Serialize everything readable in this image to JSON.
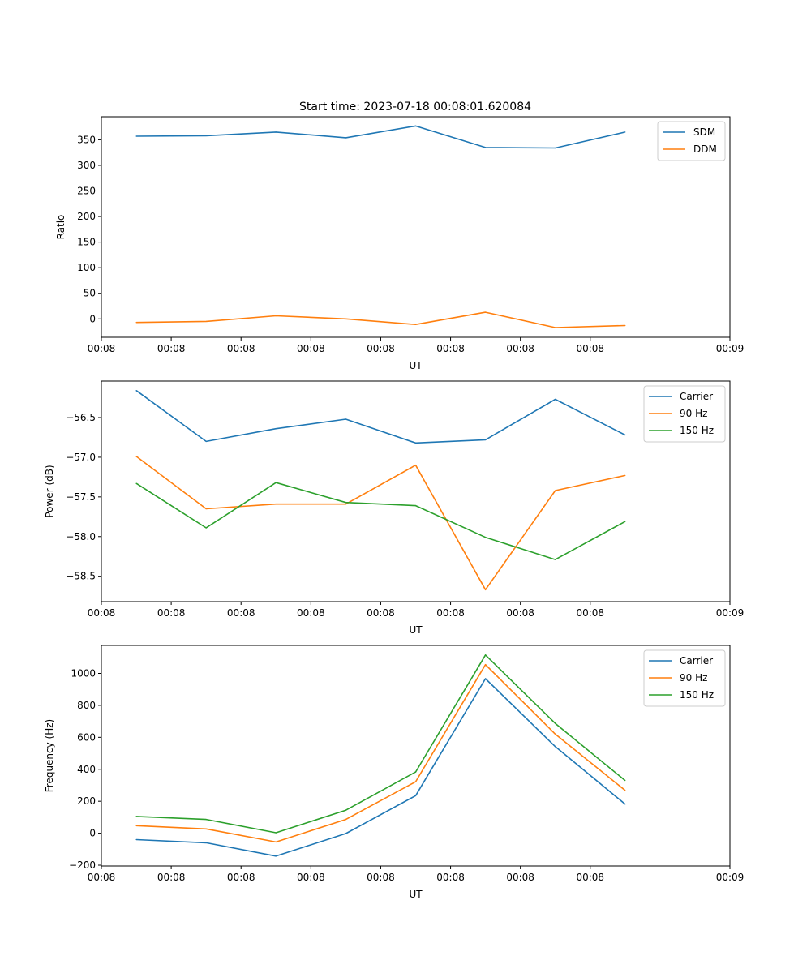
{
  "title": "Start time: 2023-07-18 00:08:01.620084",
  "colors": {
    "blue": "#1f77b4",
    "orange": "#ff7f0e",
    "green": "#2ca02c",
    "axis": "#000000",
    "background": "#ffffff"
  },
  "chart_data": [
    {
      "type": "line",
      "title": "Start time: 2023-07-18 00:08:01.620084",
      "xlabel": "UT",
      "ylabel": "Ratio",
      "xlim": [
        0,
        9
      ],
      "x_ticks": [
        0,
        1,
        2,
        3,
        4,
        5,
        6,
        7,
        9
      ],
      "x_tick_labels": [
        "00:08",
        "00:08",
        "00:08",
        "00:08",
        "00:08",
        "00:08",
        "00:08",
        "00:08",
        "00:09"
      ],
      "ylim": [
        -36,
        395
      ],
      "y_ticks": [
        0,
        50,
        100,
        150,
        200,
        250,
        300,
        350
      ],
      "y_tick_labels": [
        "0",
        "50",
        "100",
        "150",
        "200",
        "250",
        "300",
        "350"
      ],
      "legend_position": "top-right",
      "x": [
        0.5,
        1.5,
        2.5,
        3.5,
        4.5,
        5.5,
        6.5,
        7.5
      ],
      "series": [
        {
          "name": "SDM",
          "color": "#1f77b4",
          "values": [
            357,
            358,
            365,
            354,
            377,
            335,
            334,
            365
          ]
        },
        {
          "name": "DDM",
          "color": "#ff7f0e",
          "values": [
            -7,
            -5,
            6,
            0,
            -11,
            13,
            -17,
            -13
          ]
        }
      ]
    },
    {
      "type": "line",
      "title": "",
      "xlabel": "UT",
      "ylabel": "Power (dB)",
      "xlim": [
        0,
        9
      ],
      "x_ticks": [
        0,
        1,
        2,
        3,
        4,
        5,
        6,
        7,
        9
      ],
      "x_tick_labels": [
        "00:08",
        "00:08",
        "00:08",
        "00:08",
        "00:08",
        "00:08",
        "00:08",
        "00:08",
        "00:09"
      ],
      "ylim": [
        -58.82,
        -56.04
      ],
      "y_ticks": [
        -58.5,
        -58.0,
        -57.5,
        -57.0,
        -56.5
      ],
      "y_tick_labels": [
        "−58.5",
        "−58.0",
        "−57.5",
        "−57.0",
        "−56.5"
      ],
      "legend_position": "top-right",
      "x": [
        0.5,
        1.5,
        2.5,
        3.5,
        4.5,
        5.5,
        6.5,
        7.5
      ],
      "series": [
        {
          "name": "Carrier",
          "color": "#1f77b4",
          "values": [
            -56.16,
            -56.8,
            -56.64,
            -56.52,
            -56.82,
            -56.78,
            -56.27,
            -56.72
          ]
        },
        {
          "name": "90 Hz",
          "color": "#ff7f0e",
          "values": [
            -56.99,
            -57.65,
            -57.59,
            -57.59,
            -57.1,
            -58.67,
            -57.42,
            -57.23
          ]
        },
        {
          "name": "150 Hz",
          "color": "#2ca02c",
          "values": [
            -57.33,
            -57.89,
            -57.32,
            -57.57,
            -57.61,
            -58.01,
            -58.29,
            -57.81
          ]
        }
      ]
    },
    {
      "type": "line",
      "title": "",
      "xlabel": "UT",
      "ylabel": "Frequency (Hz)",
      "xlim": [
        0,
        9
      ],
      "x_ticks": [
        0,
        1,
        2,
        3,
        4,
        5,
        6,
        7,
        9
      ],
      "x_tick_labels": [
        "00:08",
        "00:08",
        "00:08",
        "00:08",
        "00:08",
        "00:08",
        "00:08",
        "00:08",
        "00:09"
      ],
      "ylim": [
        -205,
        1175
      ],
      "y_ticks": [
        -200,
        0,
        200,
        400,
        600,
        800,
        1000
      ],
      "y_tick_labels": [
        "−200",
        "0",
        "200",
        "400",
        "600",
        "800",
        "1000"
      ],
      "legend_position": "top-right",
      "x": [
        0.5,
        1.5,
        2.5,
        3.5,
        4.5,
        5.5,
        6.5,
        7.5
      ],
      "series": [
        {
          "name": "Carrier",
          "color": "#1f77b4",
          "values": [
            -40,
            -60,
            -143,
            -2,
            235,
            967,
            542,
            182
          ]
        },
        {
          "name": "90 Hz",
          "color": "#ff7f0e",
          "values": [
            47,
            27,
            -55,
            86,
            322,
            1055,
            620,
            268
          ]
        },
        {
          "name": "150 Hz",
          "color": "#2ca02c",
          "values": [
            105,
            86,
            3,
            144,
            383,
            1115,
            687,
            330
          ]
        }
      ]
    }
  ]
}
